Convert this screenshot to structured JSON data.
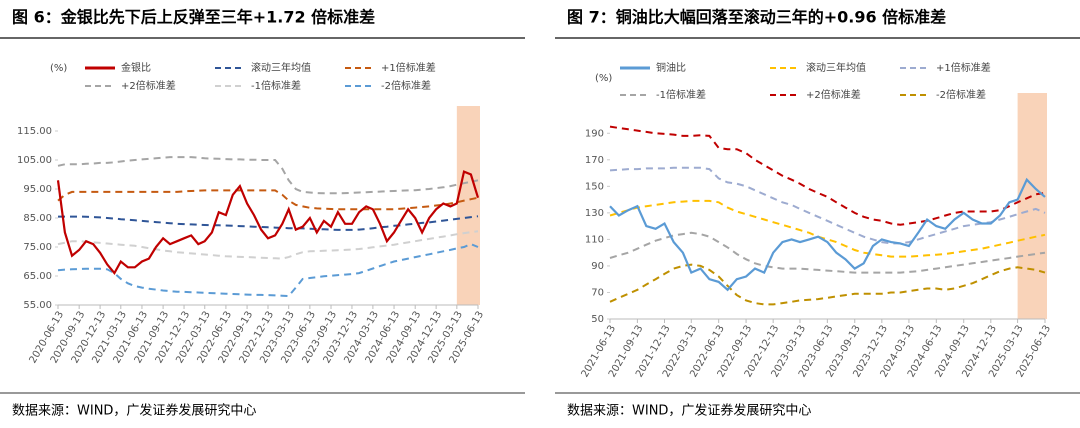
{
  "chart_data": [
    {
      "type": "line",
      "title": "图 6：金银比先下后上反弹至三年+1.72 倍标准差",
      "ylabel": "(%)",
      "source": "数据来源：WIND，广发证券发展研究中心",
      "x": [
        "2020-06-13",
        "2020-07-13",
        "2020-08-13",
        "2020-09-13",
        "2020-10-13",
        "2020-11-13",
        "2020-12-13",
        "2021-01-13",
        "2021-02-13",
        "2021-03-13",
        "2021-04-13",
        "2021-05-13",
        "2021-06-13",
        "2021-07-13",
        "2021-08-13",
        "2021-09-13",
        "2021-10-13",
        "2021-11-13",
        "2021-12-13",
        "2022-01-13",
        "2022-02-13",
        "2022-03-13",
        "2022-04-13",
        "2022-05-13",
        "2022-06-13",
        "2022-07-13",
        "2022-08-13",
        "2022-09-13",
        "2022-10-13",
        "2022-11-13",
        "2022-12-13",
        "2023-01-13",
        "2023-02-13",
        "2023-03-13",
        "2023-04-13",
        "2023-05-13",
        "2023-06-13",
        "2023-07-13",
        "2023-08-13",
        "2023-09-13",
        "2023-10-13",
        "2023-11-13",
        "2023-12-13",
        "2024-01-13",
        "2024-02-13",
        "2024-03-13",
        "2024-04-13",
        "2024-05-13",
        "2024-06-13",
        "2024-07-13",
        "2024-08-13",
        "2024-09-13",
        "2024-10-13",
        "2024-11-13",
        "2024-12-13",
        "2025-01-13",
        "2025-02-13",
        "2025-03-13",
        "2025-04-13",
        "2025-05-13",
        "2025-06-13"
      ],
      "xticks": [
        "2020-06-13",
        "2020-09-13",
        "2020-12-13",
        "2021-03-13",
        "2021-06-13",
        "2021-09-13",
        "2021-12-13",
        "2022-03-13",
        "2022-06-13",
        "2022-09-13",
        "2022-12-13",
        "2023-03-13",
        "2023-06-13",
        "2023-09-13",
        "2023-12-13",
        "2024-03-13",
        "2024-06-13",
        "2024-09-13",
        "2024-12-13",
        "2025-03-13",
        "2025-06-13"
      ],
      "ylim": [
        55,
        115
      ],
      "yticks": [
        {
          "value": 55,
          "label": "55.00"
        },
        {
          "value": 65,
          "label": "65.00"
        },
        {
          "value": 75,
          "label": "75.00"
        },
        {
          "value": 85,
          "label": "85.00"
        },
        {
          "value": 95,
          "label": "95.00"
        },
        {
          "value": 105,
          "label": "105.00"
        },
        {
          "value": 115,
          "label": "115.00"
        }
      ],
      "series": [
        {
          "name": "金银比",
          "color": "#c00000",
          "dashed": false,
          "values": [
            98,
            80,
            72,
            74,
            77,
            76,
            73,
            69,
            66,
            70,
            68,
            68,
            70,
            71,
            75,
            78,
            76,
            77,
            78,
            79,
            76,
            77,
            80,
            87,
            86,
            93,
            96,
            90,
            86,
            81,
            78,
            79,
            83,
            88,
            81,
            82,
            85,
            80,
            84,
            82,
            87,
            83,
            83,
            87,
            89,
            88,
            83,
            77,
            80,
            84,
            88,
            85,
            80,
            85,
            88,
            90,
            89,
            90,
            101,
            100,
            92
          ]
        },
        {
          "name": "滚动三年均值",
          "color": "#2f5597",
          "dashed": true,
          "values": [
            85.5,
            85.5,
            85.5,
            85.5,
            85.4,
            85.3,
            85.2,
            85.0,
            84.8,
            84.6,
            84.4,
            84.2,
            84.0,
            83.8,
            83.6,
            83.4,
            83.2,
            83.0,
            82.9,
            82.8,
            82.7,
            82.6,
            82.5,
            82.5,
            82.4,
            82.3,
            82.2,
            82.1,
            82.0,
            81.9,
            81.8,
            81.7,
            81.6,
            81.5,
            81.5,
            81.4,
            81.3,
            81.2,
            81.1,
            81.0,
            80.9,
            80.9,
            80.9,
            81.0,
            81.2,
            81.5,
            81.8,
            82.0,
            82.3,
            82.5,
            82.8,
            83.0,
            83.3,
            83.5,
            83.8,
            84.1,
            84.4,
            84.7,
            85.0,
            85.3,
            85.6
          ]
        },
        {
          "name": "+1倍标准差",
          "color": "#c55a11",
          "dashed": true,
          "values": [
            91,
            93,
            94,
            94,
            94,
            94,
            94,
            94,
            94,
            94,
            94,
            94,
            94,
            94,
            94,
            94,
            94,
            94,
            94.2,
            94.3,
            94.4,
            94.5,
            94.5,
            94.5,
            94.5,
            94.5,
            94.5,
            94.5,
            94.5,
            94.5,
            94.5,
            94.5,
            93,
            91,
            89.5,
            89,
            88.5,
            88.3,
            88.2,
            88.1,
            88,
            88,
            88,
            88,
            88,
            88,
            88,
            88,
            88,
            88.2,
            88.4,
            88.6,
            88.8,
            89,
            89.3,
            89.6,
            90,
            90.4,
            91,
            91.5,
            92
          ]
        },
        {
          "name": "+2倍标准差",
          "color": "#a5a5a5",
          "dashed": true,
          "values": [
            103,
            103.5,
            103.5,
            103.5,
            103.7,
            103.8,
            104,
            104,
            104.2,
            104.5,
            104.8,
            105,
            105.2,
            105.4,
            105.6,
            105.8,
            106,
            106,
            106,
            106,
            105.8,
            105.6,
            105.5,
            105.4,
            105.3,
            105.2,
            105.2,
            105.1,
            105.1,
            105,
            105,
            105,
            102,
            98,
            95,
            94,
            93.8,
            93.6,
            93.5,
            93.5,
            93.5,
            93.6,
            93.7,
            93.8,
            93.9,
            94,
            94.1,
            94.2,
            94.3,
            94.4,
            94.5,
            94.6,
            94.8,
            95,
            95.3,
            95.6,
            96,
            96.5,
            97,
            97.5,
            98
          ]
        },
        {
          "name": "-1倍标准差",
          "color": "#d0d0d0",
          "dashed": true,
          "values": [
            76,
            76.5,
            77,
            77,
            76.8,
            76.6,
            76.4,
            76.2,
            76,
            75.8,
            75.6,
            75.4,
            75,
            74.6,
            74.2,
            73.8,
            73.5,
            73.2,
            73,
            72.8,
            72.6,
            72.4,
            72.2,
            72,
            71.8,
            71.7,
            71.6,
            71.5,
            71.4,
            71.3,
            71.2,
            71.1,
            71,
            71.5,
            72.5,
            73.2,
            73.5,
            73.6,
            73.7,
            73.8,
            73.9,
            74,
            74.1,
            74.3,
            74.6,
            74.9,
            75.2,
            75.5,
            75.8,
            76.2,
            76.6,
            77,
            77.4,
            77.8,
            78.2,
            78.6,
            79,
            79.4,
            79.8,
            80.1,
            80.4
          ]
        },
        {
          "name": "-2倍标准差",
          "color": "#5b9bd5",
          "dashed": true,
          "values": [
            67,
            67.2,
            67.3,
            67.4,
            67.5,
            67.5,
            67.5,
            67.3,
            66,
            64,
            62.5,
            61.5,
            61,
            60.6,
            60.3,
            60,
            59.8,
            59.6,
            59.5,
            59.4,
            59.3,
            59.2,
            59.1,
            59,
            58.9,
            58.8,
            58.7,
            58.6,
            58.5,
            58.5,
            58.4,
            58.3,
            58.2,
            58.1,
            61,
            64,
            64.3,
            64.6,
            64.9,
            65.1,
            65.3,
            65.5,
            65.7,
            66,
            66.8,
            67.6,
            68.4,
            69.2,
            70,
            70.5,
            71,
            71.5,
            72,
            72.5,
            73,
            73.5,
            74,
            74.5,
            75,
            76,
            75
          ]
        }
      ]
    },
    {
      "type": "line",
      "title": "图 7：铜油比大幅回落至滚动三年的+0.96 倍标准差",
      "ylabel": "(%)",
      "source": "数据来源：WIND，广发证券发展研究中心",
      "x": [
        "2021-06-13",
        "2021-07-13",
        "2021-08-13",
        "2021-09-13",
        "2021-10-13",
        "2021-11-13",
        "2021-12-13",
        "2022-01-13",
        "2022-02-13",
        "2022-03-13",
        "2022-04-13",
        "2022-05-13",
        "2022-06-13",
        "2022-07-13",
        "2022-08-13",
        "2022-09-13",
        "2022-10-13",
        "2022-11-13",
        "2022-12-13",
        "2023-01-13",
        "2023-02-13",
        "2023-03-13",
        "2023-04-13",
        "2023-05-13",
        "2023-06-13",
        "2023-07-13",
        "2023-08-13",
        "2023-09-13",
        "2023-10-13",
        "2023-11-13",
        "2023-12-13",
        "2024-01-13",
        "2024-02-13",
        "2024-03-13",
        "2024-04-13",
        "2024-05-13",
        "2024-06-13",
        "2024-07-13",
        "2024-08-13",
        "2024-09-13",
        "2024-10-13",
        "2024-11-13",
        "2024-12-13",
        "2025-01-13",
        "2025-02-13",
        "2025-03-13",
        "2025-04-13",
        "2025-05-13",
        "2025-06-13"
      ],
      "xticks": [
        "2021-06-13",
        "2021-09-13",
        "2021-12-13",
        "2022-03-13",
        "2022-06-13",
        "2022-09-13",
        "2022-12-13",
        "2023-03-13",
        "2023-06-13",
        "2023-09-13",
        "2023-12-13",
        "2024-03-13",
        "2024-06-13",
        "2024-09-13",
        "2024-12-13",
        "2025-03-13",
        "2025-06-13"
      ],
      "ylim": [
        50,
        200
      ],
      "yticks": [
        50,
        70,
        90,
        110,
        130,
        150,
        170,
        190
      ],
      "series": [
        {
          "name": "铜油比",
          "color": "#5b9bd5",
          "dashed": false,
          "values": [
            135,
            128,
            132,
            135,
            120,
            118,
            122,
            108,
            100,
            85,
            88,
            80,
            78,
            72,
            80,
            82,
            88,
            85,
            100,
            108,
            110,
            108,
            110,
            112,
            108,
            100,
            95,
            88,
            92,
            105,
            110,
            108,
            107,
            105,
            115,
            125,
            120,
            118,
            125,
            130,
            125,
            122,
            122,
            128,
            138,
            140,
            155,
            148,
            142
          ]
        },
        {
          "name": "滚动三年均值",
          "color": "#ffc000",
          "dashed": true,
          "values": [
            128,
            130,
            132,
            134,
            135,
            136,
            137,
            138,
            138.5,
            139,
            139,
            139,
            138,
            134,
            131,
            129,
            127,
            125,
            123,
            121,
            119,
            117,
            115,
            112,
            110,
            108,
            105,
            102,
            100,
            99,
            98,
            97,
            97,
            97,
            97.5,
            98,
            98.5,
            99,
            100,
            101,
            102,
            103,
            104.5,
            106,
            107.5,
            109,
            110.5,
            112,
            113.5
          ]
        },
        {
          "name": "+1倍标准差",
          "color": "#9dabd0",
          "dashed": true,
          "values": [
            162,
            162.5,
            163,
            163,
            163.5,
            163.5,
            163.5,
            164,
            164,
            164,
            164,
            163,
            156,
            153,
            152,
            150,
            147,
            144,
            141,
            138,
            136,
            133,
            130,
            127,
            124,
            121,
            118,
            115,
            112,
            110,
            108,
            107,
            107,
            108,
            110,
            112,
            114,
            116,
            118,
            120,
            121,
            122,
            123,
            125,
            127,
            129,
            131,
            133,
            130
          ]
        },
        {
          "name": "-1倍标准差",
          "color": "#a5a5a5",
          "dashed": true,
          "values": [
            96,
            98,
            100,
            103,
            106,
            109,
            111,
            113,
            114,
            115,
            114,
            112,
            108,
            104,
            99,
            95,
            92,
            90,
            89,
            88,
            88,
            88,
            87.5,
            87,
            86.5,
            86,
            85.5,
            85,
            85,
            85,
            85,
            85,
            85,
            85.5,
            86,
            87,
            88,
            89,
            90,
            91,
            92,
            93,
            94,
            95,
            96,
            97,
            98,
            99,
            100
          ]
        },
        {
          "name": "+2倍标准差",
          "color": "#c00000",
          "dashed": true,
          "values": [
            195,
            194,
            193,
            192,
            191,
            190,
            189.5,
            189,
            188,
            188,
            188.5,
            188,
            179,
            178,
            178,
            175,
            170,
            166,
            162,
            158,
            155,
            152,
            148,
            145,
            142,
            138,
            134,
            130,
            127,
            125,
            124,
            122,
            121,
            122,
            123,
            124,
            126,
            128,
            130,
            131,
            131,
            131,
            131,
            132,
            135,
            138,
            141,
            144,
            145
          ]
        },
        {
          "name": "-2倍标准差",
          "color": "#bf9000",
          "dashed": true,
          "values": [
            63,
            66,
            69,
            72,
            76,
            80,
            84,
            88,
            90,
            91,
            90,
            87,
            82,
            75,
            68,
            64,
            62,
            61,
            61,
            62,
            63,
            64,
            64.5,
            65,
            66,
            67,
            68,
            69,
            69,
            69,
            69,
            70,
            70,
            71,
            72,
            73,
            73,
            72,
            73,
            75,
            77,
            80,
            83,
            86,
            88,
            89,
            88,
            87,
            85
          ]
        }
      ]
    }
  ]
}
